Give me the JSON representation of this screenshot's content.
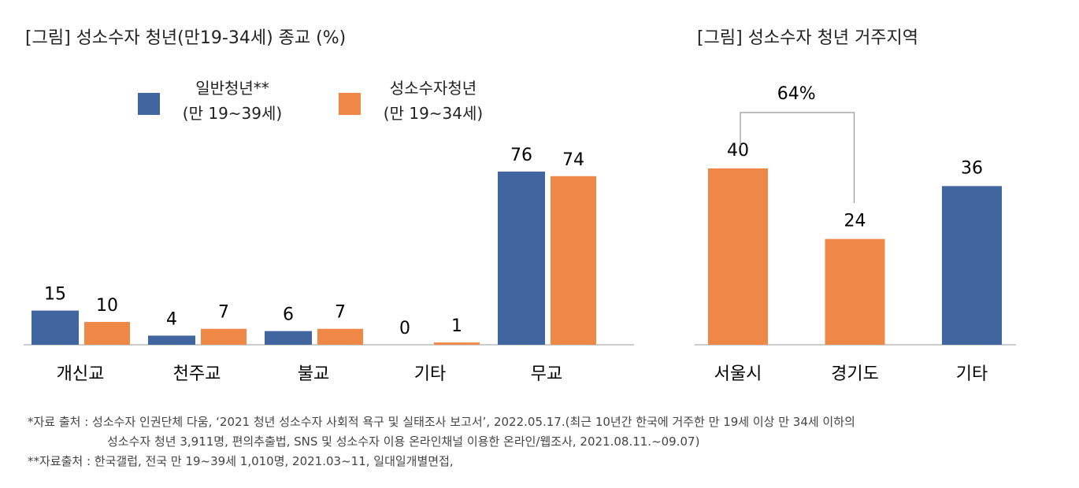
{
  "colors": {
    "general": "#41659e",
    "lgbtq": "#ef8747",
    "axis": "#bbbbbb"
  },
  "chart_data": [
    {
      "type": "bar",
      "title": "[그림] 성소수자 청년(만19-34세) 종교 (%)",
      "categories": [
        "개신교",
        "천주교",
        "불교",
        "기타",
        "무교"
      ],
      "series": [
        {
          "name": "일반청년** (만 19~39세)",
          "legend_line1": "일반청년**",
          "legend_line2": "(만 19~39세)",
          "values": [
            15,
            4,
            6,
            0,
            76
          ]
        },
        {
          "name": "성소수자청년 (만 19~34세)",
          "legend_line1": "성소수자청년",
          "legend_line2": "(만 19~34세)",
          "values": [
            10,
            7,
            7,
            1,
            74
          ]
        }
      ],
      "ylim": [
        0,
        80
      ],
      "grid": false,
      "legend": "top"
    },
    {
      "type": "bar",
      "title": "[그림] 성소수자 청년 거주지역",
      "categories": [
        "서울시",
        "경기도",
        "기타"
      ],
      "values": [
        40,
        24,
        36
      ],
      "bar_series": [
        "lgbtq",
        "lgbtq",
        "general"
      ],
      "annotation": {
        "text": "64%",
        "spans": [
          "서울시",
          "경기도"
        ]
      },
      "ylim": [
        0,
        40
      ],
      "grid": false
    }
  ],
  "footnotes": [
    "*자료 출처 : 성소수자 인권단체 다움, ‘2021 청년 성소수자 사회적 욕구 및 실태조사 보고서’, 2022.05.17.(최근 10년간 한국에 거주한 만 19세 이상 만 34세 이하의",
    "성소수자 청년 3,911명, 편의추출법, SNS 및 성소수자 이용 온라인채널 이용한 온라인/웹조사, 2021.08.11.~09.07)",
    "**자료출처 : 한국갤럽, 전국 만 19~39세 1,010명, 2021.03~11, 일대일개별면접,"
  ]
}
